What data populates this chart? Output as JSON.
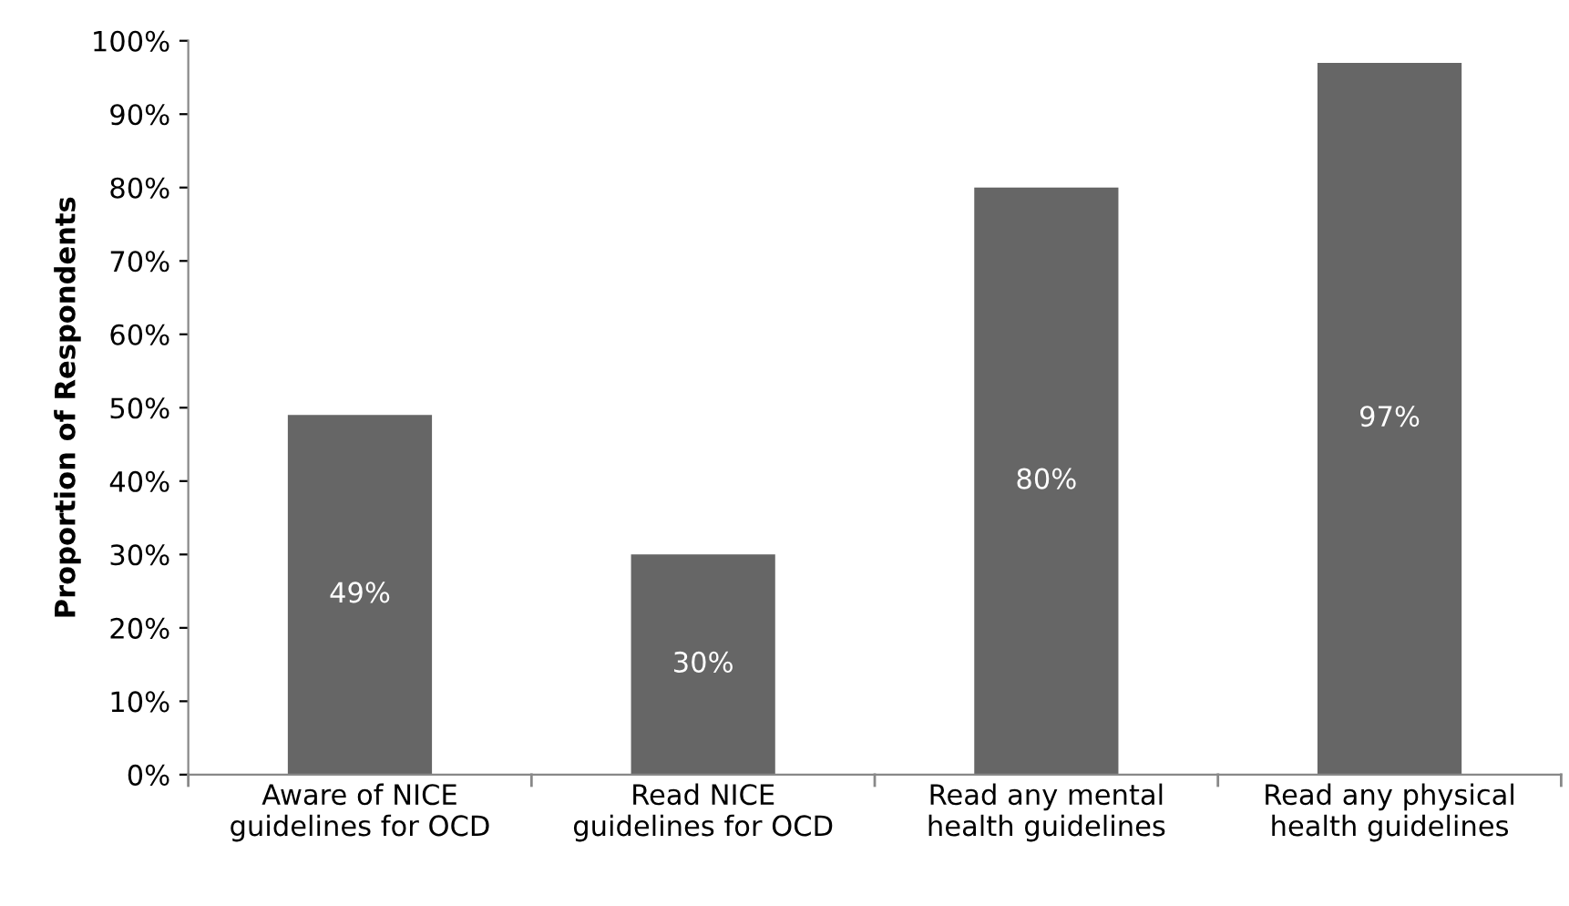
{
  "chart_data": {
    "type": "bar",
    "ylabel": "Proportion of Respondents",
    "categories": [
      "Aware of NICE\nguidelines for OCD",
      "Read NICE\nguidelines for OCD",
      "Read any mental\nhealth guidelines",
      "Read any physical\nhealth guidelines"
    ],
    "values": [
      49,
      30,
      80,
      97
    ],
    "value_labels": [
      "49%",
      "30%",
      "80%",
      "97%"
    ],
    "color": "#666666",
    "ylim": [
      0,
      100
    ],
    "yticks": [
      {
        "value": 0,
        "label": "0%"
      },
      {
        "value": 10,
        "label": "10%"
      },
      {
        "value": 20,
        "label": "20%"
      },
      {
        "value": 30,
        "label": "30%"
      },
      {
        "value": 40,
        "label": "40%"
      },
      {
        "value": 50,
        "label": "50%"
      },
      {
        "value": 60,
        "label": "60%"
      },
      {
        "value": 70,
        "label": "70%"
      },
      {
        "value": 80,
        "label": "80%"
      },
      {
        "value": 90,
        "label": "90%"
      },
      {
        "value": 100,
        "label": "100%"
      }
    ],
    "grid": false,
    "legend": false
  }
}
